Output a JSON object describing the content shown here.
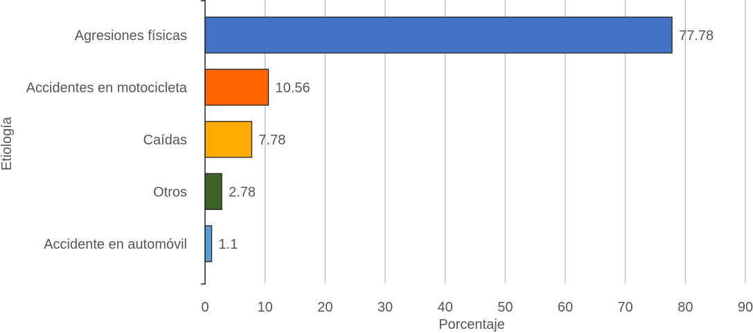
{
  "chart_data": {
    "type": "bar",
    "orientation": "horizontal",
    "categories": [
      "Agresiones físicas",
      "Accidentes en motocicleta",
      "Caídas",
      "Otros",
      "Accidente en automóvil"
    ],
    "values": [
      77.78,
      10.56,
      7.78,
      2.78,
      1.1
    ],
    "value_labels": [
      "77.78",
      "10.56",
      "7.78",
      "2.78",
      "1.1"
    ],
    "colors": [
      "#4472C4",
      "#FF6600",
      "#FFAA00",
      "#3F6226",
      "#5B9BD5"
    ],
    "xlabel": "Porcentaje",
    "ylabel": "Etiología",
    "xlim": [
      0,
      90
    ],
    "xticks": [
      0,
      10,
      20,
      30,
      40,
      50,
      60,
      70,
      80,
      90
    ],
    "grid": "vertical",
    "legend": "none"
  }
}
